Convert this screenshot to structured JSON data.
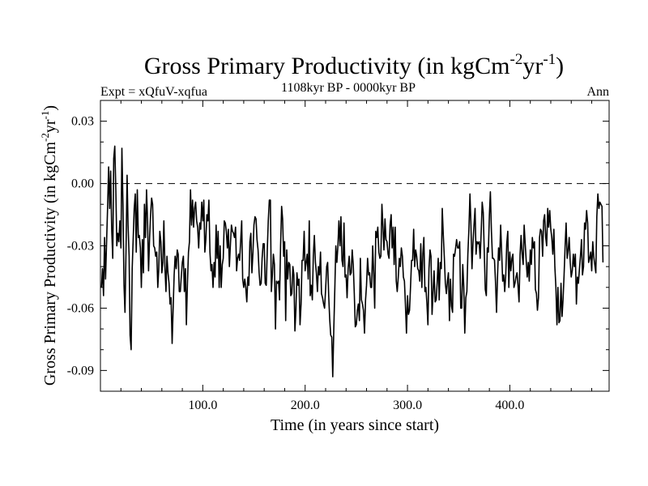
{
  "chart_data": {
    "type": "line",
    "title": "Gross Primary Productivity (in kgCm",
    "title_sup1": "-2",
    "title_mid": "yr",
    "title_sup2": "-1",
    "title_end": ")",
    "subtitle": "1108kyr BP - 0000kyr BP",
    "label_left": "Expt = xQfuV-xqfua",
    "label_right": "Ann",
    "xlabel": "Time (in years since start)",
    "ylabel": "Gross Primary Productivity (in kgCm",
    "ylabel_sup1": "-2",
    "ylabel_mid": "yr",
    "ylabel_sup2": "-1",
    "ylabel_end": ")",
    "xlim": [
      0,
      497
    ],
    "ylim": [
      -0.1,
      0.04
    ],
    "x_ticks": [
      100,
      200,
      300,
      400
    ],
    "x_tick_labels": [
      "100.0",
      "200.0",
      "300.0",
      "400.0"
    ],
    "y_ticks": [
      0.03,
      0.0,
      -0.03,
      -0.06,
      -0.09
    ],
    "y_tick_labels": [
      "0.03",
      "0.00",
      "-0.03",
      "-0.06",
      "-0.09"
    ],
    "reference_line": 0.0,
    "series": [
      {
        "name": "Ann",
        "x_start": 1,
        "x_step": 1,
        "values": [
          -0.05,
          -0.041,
          -0.054,
          -0.026,
          -0.046,
          -0.028,
          -0.012,
          0.008,
          -0.012,
          0.006,
          -0.022,
          -0.036,
          0.012,
          0.018,
          -0.003,
          -0.03,
          -0.024,
          -0.028,
          -0.018,
          -0.031,
          0.017,
          -0.01,
          -0.049,
          -0.062,
          -0.032,
          0.004,
          -0.02,
          -0.035,
          -0.073,
          -0.08,
          -0.041,
          -0.027,
          -0.012,
          -0.005,
          -0.033,
          -0.003,
          -0.026,
          -0.025,
          -0.031,
          -0.05,
          -0.027,
          -0.043,
          -0.01,
          -0.026,
          -0.003,
          -0.017,
          -0.042,
          -0.026,
          -0.015,
          -0.007,
          -0.01,
          -0.03,
          -0.031,
          -0.035,
          -0.033,
          -0.05,
          -0.041,
          -0.023,
          -0.028,
          -0.043,
          -0.038,
          -0.018,
          -0.04,
          -0.052,
          -0.035,
          -0.043,
          -0.048,
          -0.058,
          -0.055,
          -0.077,
          -0.061,
          -0.044,
          -0.035,
          -0.041,
          -0.032,
          -0.034,
          -0.052,
          -0.052,
          -0.045,
          -0.038,
          -0.035,
          -0.052,
          -0.041,
          -0.068,
          -0.048,
          -0.033,
          -0.028,
          -0.003,
          -0.02,
          -0.008,
          -0.021,
          -0.012,
          -0.009,
          -0.018,
          -0.021,
          -0.031,
          -0.019,
          -0.022,
          -0.009,
          -0.018,
          -0.008,
          -0.033,
          -0.027,
          -0.015,
          -0.018,
          -0.008,
          -0.033,
          -0.042,
          -0.039,
          -0.05,
          -0.038,
          -0.045,
          -0.02,
          -0.036,
          -0.023,
          -0.05,
          -0.03,
          -0.05,
          -0.039,
          -0.036,
          -0.018,
          -0.019,
          -0.023,
          -0.031,
          -0.022,
          -0.04,
          -0.029,
          -0.02,
          -0.023,
          -0.024,
          -0.026,
          -0.021,
          -0.042,
          -0.036,
          -0.034,
          -0.037,
          -0.028,
          -0.018,
          -0.046,
          -0.05,
          -0.046,
          -0.05,
          -0.057,
          -0.045,
          -0.049,
          -0.028,
          -0.024,
          -0.043,
          -0.033,
          -0.02,
          -0.016,
          -0.017,
          -0.027,
          -0.032,
          -0.043,
          -0.049,
          -0.048,
          -0.036,
          -0.029,
          -0.029,
          -0.048,
          -0.049,
          -0.032,
          -0.018,
          -0.008,
          -0.008,
          -0.052,
          -0.044,
          -0.034,
          -0.039,
          -0.07,
          -0.047,
          -0.048,
          -0.047,
          -0.056,
          -0.03,
          -0.011,
          -0.017,
          -0.035,
          -0.028,
          -0.066,
          -0.032,
          -0.046,
          -0.038,
          -0.039,
          -0.054,
          -0.053,
          -0.04,
          -0.044,
          -0.071,
          -0.061,
          -0.043,
          -0.049,
          -0.046,
          -0.068,
          -0.058,
          -0.037,
          -0.037,
          -0.023,
          -0.042,
          -0.038,
          -0.034,
          -0.046,
          -0.018,
          -0.054,
          -0.049,
          -0.056,
          -0.035,
          -0.025,
          -0.038,
          -0.043,
          -0.052,
          -0.04,
          -0.044,
          -0.033,
          -0.053,
          -0.055,
          -0.058,
          -0.06,
          -0.051,
          -0.04,
          -0.038,
          -0.054,
          -0.065,
          -0.073,
          -0.074,
          -0.093,
          -0.07,
          -0.05,
          -0.03,
          -0.038,
          -0.03,
          -0.018,
          -0.03,
          -0.016,
          -0.037,
          -0.04,
          -0.019,
          -0.045,
          -0.044,
          -0.055,
          -0.041,
          -0.035,
          -0.044,
          -0.043,
          -0.032,
          -0.039,
          -0.053,
          -0.069,
          -0.068,
          -0.061,
          -0.058,
          -0.066,
          -0.036,
          -0.056,
          -0.058,
          -0.061,
          -0.072,
          -0.056,
          -0.049,
          -0.036,
          -0.044,
          -0.043,
          -0.05,
          -0.05,
          -0.03,
          -0.044,
          -0.06,
          -0.023,
          -0.026,
          -0.021,
          -0.033,
          -0.036,
          -0.035,
          -0.01,
          -0.02,
          -0.032,
          -0.017,
          -0.027,
          -0.028,
          -0.034,
          -0.036,
          -0.02,
          -0.015,
          -0.031,
          -0.021,
          -0.039,
          -0.021,
          -0.047,
          -0.052,
          -0.045,
          -0.036,
          -0.04,
          -0.031,
          -0.035,
          -0.045,
          -0.047,
          -0.058,
          -0.072,
          -0.054,
          -0.063,
          -0.061,
          -0.049,
          -0.037,
          -0.037,
          -0.022,
          -0.04,
          -0.032,
          -0.035,
          -0.041,
          -0.042,
          -0.047,
          -0.029,
          -0.05,
          -0.034,
          -0.026,
          -0.052,
          -0.05,
          -0.058,
          -0.068,
          -0.041,
          -0.032,
          -0.035,
          -0.063,
          -0.052,
          -0.042,
          -0.057,
          -0.056,
          -0.048,
          -0.036,
          -0.056,
          -0.038,
          -0.041,
          -0.012,
          -0.025,
          -0.036,
          -0.048,
          -0.053,
          -0.047,
          -0.043,
          -0.066,
          -0.046,
          -0.059,
          -0.062,
          -0.034,
          -0.035,
          -0.031,
          -0.027,
          -0.031,
          -0.031,
          -0.028,
          -0.06,
          -0.06,
          -0.039,
          -0.05,
          -0.072,
          -0.055,
          -0.052,
          -0.034,
          -0.022,
          -0.005,
          -0.02,
          -0.041,
          -0.029,
          -0.02,
          -0.012,
          -0.034,
          -0.028,
          -0.029,
          -0.028,
          -0.036,
          -0.023,
          -0.009,
          -0.014,
          -0.032,
          -0.051,
          -0.054,
          -0.031,
          -0.033,
          -0.015,
          -0.004,
          -0.023,
          -0.036,
          -0.036,
          -0.037,
          -0.047,
          -0.062,
          -0.044,
          -0.031,
          -0.037,
          -0.02,
          -0.033,
          -0.047,
          -0.044,
          -0.052,
          -0.044,
          -0.029,
          -0.023,
          -0.05,
          -0.033,
          -0.042,
          -0.036,
          -0.034,
          -0.05,
          -0.048,
          -0.045,
          -0.043,
          -0.049,
          -0.057,
          -0.034,
          -0.025,
          -0.034,
          -0.039,
          -0.02,
          -0.029,
          -0.037,
          -0.045,
          -0.038,
          -0.047,
          -0.032,
          -0.039,
          -0.026,
          -0.031,
          -0.028,
          -0.051,
          -0.053,
          -0.061,
          -0.055,
          -0.026,
          -0.022,
          -0.023,
          -0.035,
          -0.018,
          -0.015,
          -0.026,
          -0.03,
          -0.012,
          -0.021,
          -0.013,
          -0.022,
          -0.026,
          -0.034,
          -0.022,
          -0.04,
          -0.05,
          -0.068,
          -0.05,
          -0.067,
          -0.066,
          -0.048,
          -0.064,
          -0.056,
          -0.044,
          -0.03,
          -0.019,
          -0.036,
          -0.032,
          -0.026,
          -0.038,
          -0.045,
          -0.042,
          -0.034,
          -0.04,
          -0.034,
          -0.058,
          -0.045,
          -0.048,
          -0.041,
          -0.035,
          -0.027,
          -0.044,
          -0.04,
          -0.019,
          -0.022,
          -0.013,
          -0.019,
          -0.038,
          -0.036,
          -0.033,
          -0.042,
          -0.028,
          -0.035,
          -0.039,
          -0.043,
          -0.016,
          -0.005,
          -0.012,
          -0.009,
          -0.01,
          -0.011,
          -0.038
        ]
      }
    ]
  }
}
